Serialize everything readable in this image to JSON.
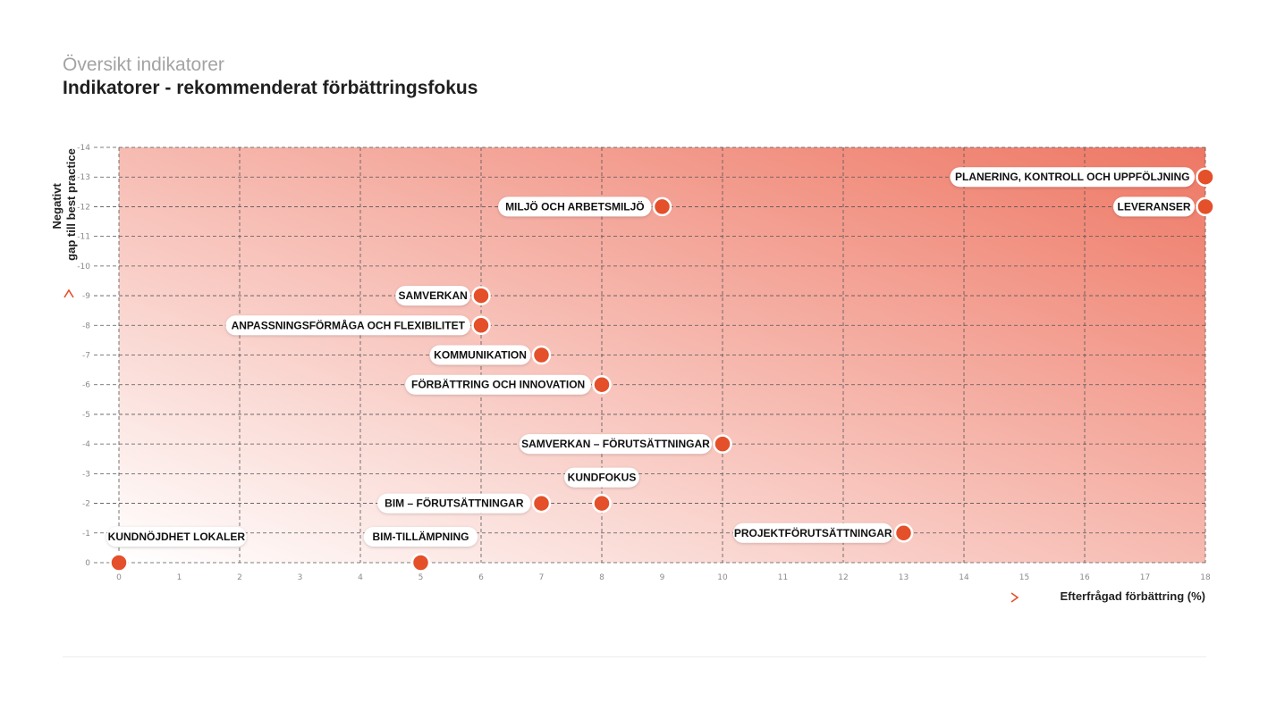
{
  "header": {
    "subtitle": "Översikt indikatorer",
    "title": "Indikatorer - rekommenderat förbättringsfokus"
  },
  "colors": {
    "accent": "#e4502a",
    "gradient_strong": "#ee7764",
    "gradient_light": "#ffffff",
    "grid": "#555555"
  },
  "chart_data": {
    "type": "scatter",
    "xlabel": "Efterfrågad förbättring (%)",
    "ylabel": [
      "Negativt",
      "gap till best practice"
    ],
    "xlim": [
      0,
      18
    ],
    "ylim": [
      0,
      -14
    ],
    "x_ticks": [
      "0",
      "1",
      "2",
      "3",
      "4",
      "5",
      "6",
      "7",
      "8",
      "9",
      "10",
      "11",
      "12",
      "13",
      "14",
      "15",
      "16",
      "17",
      "18"
    ],
    "y_ticks": [
      "0",
      "-1",
      "-2",
      "-3",
      "-4",
      "-5",
      "-6",
      "-7",
      "-8",
      "-9",
      "-10",
      "-11",
      "-12",
      "-13",
      "-14"
    ],
    "grid": true,
    "points": [
      {
        "label": "PLANERING, KONTROLL OCH UPPFÖLJNING",
        "x": 18,
        "y": -13,
        "label_pos": "left"
      },
      {
        "label": "LEVERANSER",
        "x": 18,
        "y": -12,
        "label_pos": "left"
      },
      {
        "label": "MILJÖ OCH ARBETSMILJÖ",
        "x": 9,
        "y": -12,
        "label_pos": "left"
      },
      {
        "label": "SAMVERKAN",
        "x": 6,
        "y": -9,
        "label_pos": "left"
      },
      {
        "label": "ANPASSNINGSFÖRMÅGA OCH FLEXIBILITET",
        "x": 6,
        "y": -8,
        "label_pos": "left"
      },
      {
        "label": "KOMMUNIKATION",
        "x": 7,
        "y": -7,
        "label_pos": "left"
      },
      {
        "label": "FÖRBÄTTRING OCH INNOVATION",
        "x": 8,
        "y": -6,
        "label_pos": "left"
      },
      {
        "label": "SAMVERKAN – FÖRUTSÄTTNINGAR",
        "x": 10,
        "y": -4,
        "label_pos": "left"
      },
      {
        "label": "KUNDFOKUS",
        "x": 8,
        "y": -2,
        "label_pos": "above"
      },
      {
        "label": "BIM – FÖRUTSÄTTNINGAR",
        "x": 7,
        "y": -2,
        "label_pos": "left"
      },
      {
        "label": "PROJEKTFÖRUTSÄTTNINGAR",
        "x": 13,
        "y": -1,
        "label_pos": "left"
      },
      {
        "label": "KUNDNÖJDHET LOKALER",
        "x": 0,
        "y": 0,
        "label_pos": "above"
      },
      {
        "label": "BIM-TILLÄMPNING",
        "x": 5,
        "y": 0,
        "label_pos": "above"
      }
    ]
  }
}
